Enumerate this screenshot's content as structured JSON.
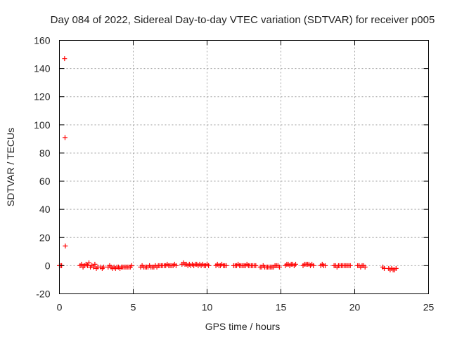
{
  "chart_data": {
    "type": "scatter",
    "title": "Day 084 of 2022, Sidereal Day-to-day VTEC variation (SDTVAR) for receiver p005",
    "xlabel": "GPS time / hours",
    "ylabel": "SDTVAR / TECUs",
    "xlim": [
      0,
      25
    ],
    "ylim": [
      -20,
      160
    ],
    "xticks": [
      0,
      5,
      10,
      15,
      20,
      25
    ],
    "yticks": [
      -20,
      0,
      20,
      40,
      60,
      80,
      100,
      120,
      140,
      160
    ],
    "grid": true,
    "marker": "+",
    "marker_color": "#ff0000",
    "series": [
      {
        "name": "SDTVAR",
        "points": [
          [
            0.0,
            0
          ],
          [
            0.1,
            0
          ],
          [
            0.15,
            0
          ],
          [
            0.35,
            147
          ],
          [
            0.38,
            91
          ],
          [
            0.4,
            14
          ],
          [
            1.4,
            0
          ],
          [
            1.5,
            1
          ],
          [
            1.6,
            -1
          ],
          [
            1.7,
            0
          ],
          [
            1.8,
            1
          ],
          [
            1.9,
            0
          ],
          [
            2.0,
            2
          ],
          [
            2.1,
            -1
          ],
          [
            2.2,
            0
          ],
          [
            2.3,
            -1
          ],
          [
            2.4,
            1
          ],
          [
            2.5,
            -2
          ],
          [
            2.6,
            -1
          ],
          [
            2.8,
            -1
          ],
          [
            2.9,
            -2
          ],
          [
            3.0,
            -1
          ],
          [
            3.3,
            -1
          ],
          [
            3.4,
            0
          ],
          [
            3.5,
            -1
          ],
          [
            3.6,
            -2
          ],
          [
            3.7,
            -1
          ],
          [
            3.8,
            -2
          ],
          [
            3.9,
            -1
          ],
          [
            4.0,
            -1
          ],
          [
            4.1,
            -2
          ],
          [
            4.2,
            -1
          ],
          [
            4.3,
            -1
          ],
          [
            4.4,
            -1
          ],
          [
            4.5,
            -1
          ],
          [
            4.6,
            -1
          ],
          [
            4.7,
            -1
          ],
          [
            4.8,
            -1
          ],
          [
            4.9,
            0
          ],
          [
            5.5,
            -1
          ],
          [
            5.6,
            0
          ],
          [
            5.7,
            -1
          ],
          [
            5.8,
            -1
          ],
          [
            5.9,
            -1
          ],
          [
            6.0,
            -1
          ],
          [
            6.1,
            0
          ],
          [
            6.2,
            -1
          ],
          [
            6.3,
            -1
          ],
          [
            6.4,
            -1
          ],
          [
            6.5,
            0
          ],
          [
            6.6,
            -1
          ],
          [
            6.7,
            0
          ],
          [
            6.8,
            0
          ],
          [
            6.9,
            0
          ],
          [
            7.0,
            0
          ],
          [
            7.1,
            0
          ],
          [
            7.2,
            0
          ],
          [
            7.3,
            1
          ],
          [
            7.4,
            0
          ],
          [
            7.5,
            0
          ],
          [
            7.6,
            0
          ],
          [
            7.7,
            0
          ],
          [
            7.8,
            1
          ],
          [
            7.9,
            0
          ],
          [
            8.3,
            1
          ],
          [
            8.4,
            2
          ],
          [
            8.5,
            1
          ],
          [
            8.6,
            1
          ],
          [
            8.7,
            0
          ],
          [
            8.8,
            1
          ],
          [
            8.9,
            0
          ],
          [
            9.0,
            1
          ],
          [
            9.1,
            0
          ],
          [
            9.2,
            1
          ],
          [
            9.3,
            1
          ],
          [
            9.4,
            0
          ],
          [
            9.5,
            1
          ],
          [
            9.6,
            0
          ],
          [
            9.7,
            1
          ],
          [
            9.8,
            0
          ],
          [
            9.9,
            0
          ],
          [
            10.0,
            1
          ],
          [
            10.1,
            0
          ],
          [
            10.6,
            0
          ],
          [
            10.7,
            1
          ],
          [
            10.8,
            0
          ],
          [
            10.9,
            0
          ],
          [
            11.0,
            1
          ],
          [
            11.1,
            0
          ],
          [
            11.2,
            0
          ],
          [
            11.3,
            0
          ],
          [
            11.8,
            0
          ],
          [
            11.9,
            0
          ],
          [
            12.0,
            0
          ],
          [
            12.1,
            1
          ],
          [
            12.2,
            0
          ],
          [
            12.3,
            0
          ],
          [
            12.4,
            0
          ],
          [
            12.5,
            0
          ],
          [
            12.6,
            0
          ],
          [
            12.7,
            1
          ],
          [
            12.8,
            0
          ],
          [
            12.9,
            0
          ],
          [
            13.0,
            0
          ],
          [
            13.1,
            0
          ],
          [
            13.2,
            0
          ],
          [
            13.3,
            0
          ],
          [
            13.6,
            -1
          ],
          [
            13.7,
            -1
          ],
          [
            13.8,
            0
          ],
          [
            13.9,
            -1
          ],
          [
            14.0,
            -1
          ],
          [
            14.1,
            -1
          ],
          [
            14.2,
            -1
          ],
          [
            14.3,
            -1
          ],
          [
            14.4,
            -1
          ],
          [
            14.5,
            -1
          ],
          [
            14.6,
            0
          ],
          [
            14.7,
            0
          ],
          [
            14.8,
            0
          ],
          [
            14.9,
            -1
          ],
          [
            15.3,
            0
          ],
          [
            15.4,
            1
          ],
          [
            15.5,
            1
          ],
          [
            15.6,
            0
          ],
          [
            15.7,
            1
          ],
          [
            15.8,
            1
          ],
          [
            15.9,
            0
          ],
          [
            16.0,
            1
          ],
          [
            16.5,
            0
          ],
          [
            16.6,
            1
          ],
          [
            16.7,
            1
          ],
          [
            16.8,
            1
          ],
          [
            16.9,
            1
          ],
          [
            17.0,
            0
          ],
          [
            17.1,
            1
          ],
          [
            17.2,
            0
          ],
          [
            17.7,
            0
          ],
          [
            17.8,
            1
          ],
          [
            17.9,
            0
          ],
          [
            18.0,
            0
          ],
          [
            18.6,
            0
          ],
          [
            18.7,
            0
          ],
          [
            18.8,
            -1
          ],
          [
            18.9,
            0
          ],
          [
            19.0,
            0
          ],
          [
            19.1,
            0
          ],
          [
            19.2,
            0
          ],
          [
            19.3,
            0
          ],
          [
            19.4,
            0
          ],
          [
            19.5,
            0
          ],
          [
            19.6,
            0
          ],
          [
            19.7,
            0
          ],
          [
            20.2,
            0
          ],
          [
            20.3,
            0
          ],
          [
            20.4,
            -1
          ],
          [
            20.5,
            0
          ],
          [
            20.6,
            0
          ],
          [
            20.7,
            -1
          ],
          [
            21.9,
            -1
          ],
          [
            22.0,
            -2
          ],
          [
            22.3,
            -2
          ],
          [
            22.4,
            -3
          ],
          [
            22.5,
            -2
          ],
          [
            22.6,
            -3
          ],
          [
            22.7,
            -3
          ],
          [
            22.8,
            -2
          ]
        ]
      }
    ]
  }
}
